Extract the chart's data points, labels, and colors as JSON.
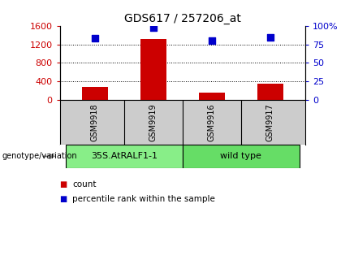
{
  "title": "GDS617 / 257206_at",
  "samples": [
    "GSM9918",
    "GSM9919",
    "GSM9916",
    "GSM9917"
  ],
  "counts": [
    280,
    1320,
    160,
    340
  ],
  "percentiles": [
    1340,
    1570,
    1280,
    1360
  ],
  "ylim_left": [
    0,
    1600
  ],
  "ylim_right": [
    0,
    100
  ],
  "yticks_left": [
    0,
    400,
    800,
    1200,
    1600
  ],
  "yticks_right": [
    0,
    25,
    50,
    75,
    100
  ],
  "ytick_labels_right": [
    "0",
    "25",
    "50",
    "75",
    "100%"
  ],
  "bar_color": "#cc0000",
  "dot_color": "#0000cc",
  "bg_color": "#ffffff",
  "label_color_left": "#cc0000",
  "label_color_right": "#0000cc",
  "genotype_groups": [
    {
      "label": "35S.AtRALF1-1",
      "indices": [
        0,
        1
      ],
      "color": "#88ee88"
    },
    {
      "label": "wild type",
      "indices": [
        2,
        3
      ],
      "color": "#66dd66"
    }
  ],
  "sample_box_color": "#cccccc",
  "bar_width": 0.45,
  "dot_size": 40
}
